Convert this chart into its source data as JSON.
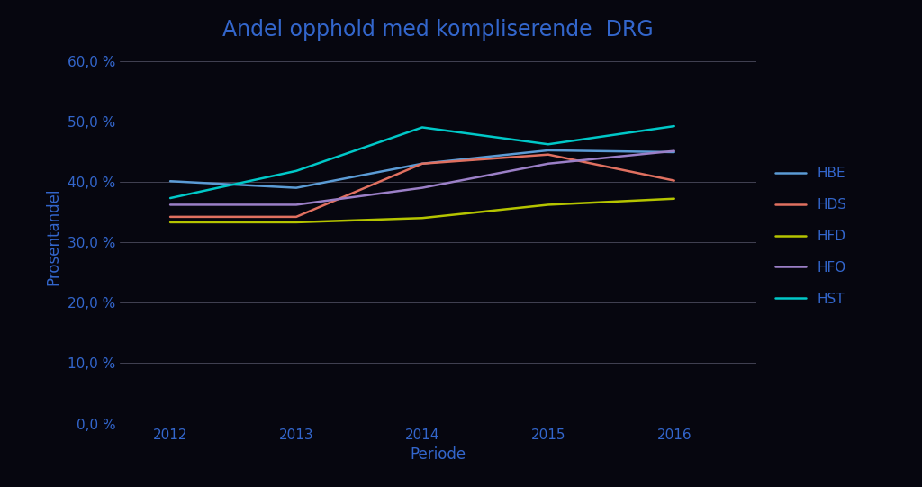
{
  "title": "Andel opphold med kompliserende  DRG",
  "xlabel": "Periode",
  "ylabel": "Prosentandel",
  "background_color": "#06060f",
  "plot_bg_color": "#06060f",
  "text_color": "#3366cc",
  "grid_color": "#aaaacc",
  "years": [
    2012,
    2013,
    2014,
    2015,
    2016
  ],
  "series": [
    {
      "label": "HBE",
      "color": "#5b9bd5",
      "values": [
        0.401,
        0.39,
        0.43,
        0.452,
        0.449
      ]
    },
    {
      "label": "HDS",
      "color": "#e07060",
      "values": [
        0.342,
        0.342,
        0.43,
        0.445,
        0.402
      ]
    },
    {
      "label": "HFD",
      "color": "#b5c400",
      "values": [
        0.333,
        0.333,
        0.34,
        0.362,
        0.372
      ]
    },
    {
      "label": "HFO",
      "color": "#9b7fc7",
      "values": [
        0.362,
        0.362,
        0.39,
        0.43,
        0.451
      ]
    },
    {
      "label": "HST",
      "color": "#00c8c8",
      "values": [
        0.373,
        0.418,
        0.49,
        0.462,
        0.492
      ]
    }
  ],
  "ylim": [
    0.0,
    0.62
  ],
  "yticks": [
    0.0,
    0.1,
    0.2,
    0.3,
    0.4,
    0.5,
    0.6
  ],
  "ytick_labels": [
    "0,0 %",
    "10,0 %",
    "20,0 %",
    "30,0 %",
    "40,0 %",
    "50,0 %",
    "60,0 %"
  ],
  "title_fontsize": 17,
  "axis_label_fontsize": 12,
  "tick_fontsize": 11,
  "legend_fontsize": 11,
  "line_width": 1.8
}
